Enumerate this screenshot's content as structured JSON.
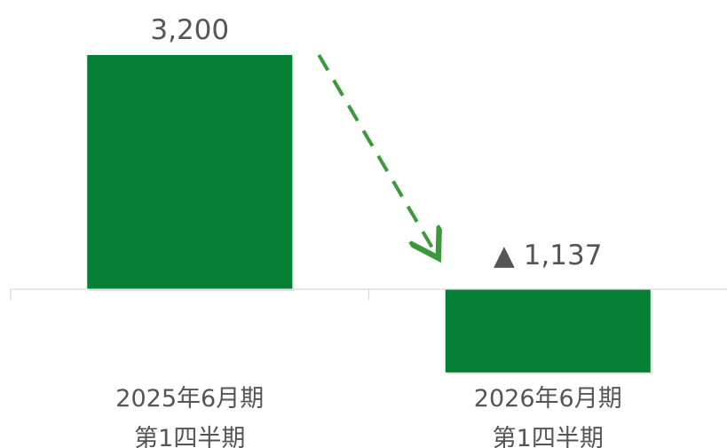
{
  "chart_data": {
    "type": "bar",
    "categories": [
      [
        "2025年6月期",
        "第1四半期"
      ],
      [
        "2026年6月期",
        "第1四半期"
      ]
    ],
    "values": [
      3200,
      -1137
    ],
    "data_labels": [
      "3,200",
      "▲ 1,137"
    ],
    "title": "",
    "xlabel": "",
    "ylabel": "",
    "ylim": [
      -1600,
      3650
    ],
    "grid": false,
    "legend": "none",
    "annotations": [
      {
        "type": "arrow",
        "style": "dashed",
        "from_category": 0,
        "to_category": 1,
        "color": "#3a9a3a"
      }
    ]
  },
  "colors": {
    "bar": "#047f33",
    "bar_shadow": "#cfcfcf",
    "arrow": "#3a9a3a",
    "axis": "#d9d9d9",
    "text": "#555555"
  }
}
